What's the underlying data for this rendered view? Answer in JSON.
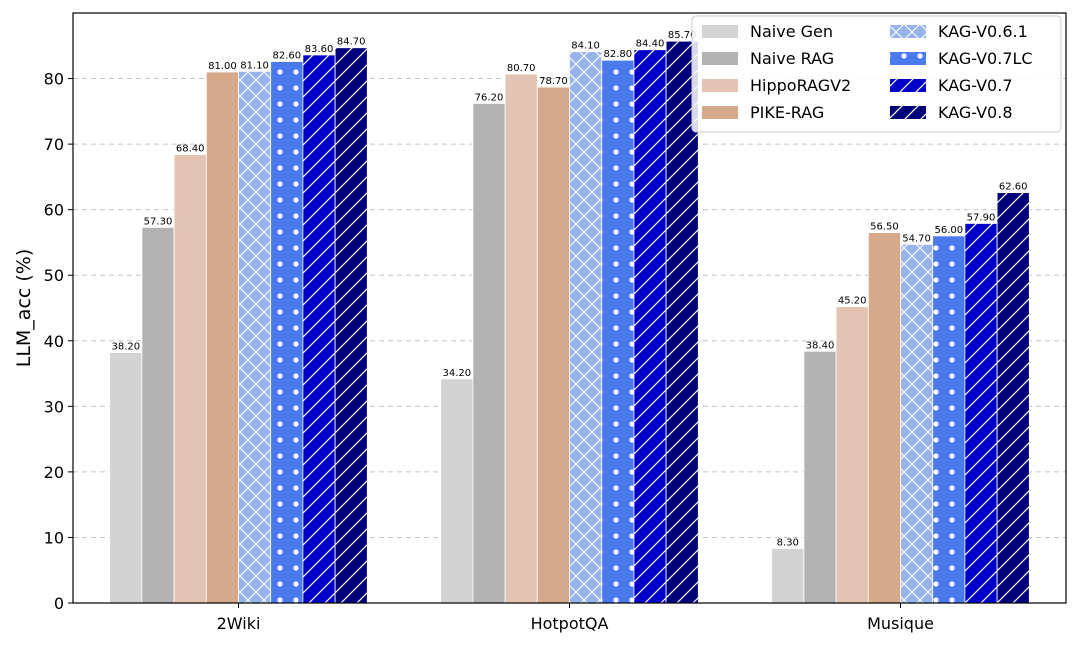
{
  "chart_data": {
    "type": "bar",
    "title": "",
    "xlabel": "",
    "ylabel": "LLM_acc (%)",
    "ylim": [
      0,
      90
    ],
    "yticks": [
      0,
      10,
      20,
      30,
      40,
      50,
      60,
      70,
      80
    ],
    "grid": "y-dashed",
    "legend_position": "top-right",
    "categories": [
      "2Wiki",
      "HotpotQA",
      "Musique"
    ],
    "series": [
      {
        "name": "Naive Gen",
        "values": [
          38.2,
          34.2,
          8.3
        ],
        "color": "#d3d3d3",
        "hatch": "none",
        "labels": [
          "38.20",
          "34.20",
          "8.30"
        ]
      },
      {
        "name": "Naive RAG",
        "values": [
          57.3,
          76.2,
          38.4
        ],
        "color": "#b3b3b3",
        "hatch": "none",
        "labels": [
          "57.30",
          "76.20",
          "38.40"
        ]
      },
      {
        "name": "HippoRAGV2",
        "values": [
          68.4,
          80.7,
          45.2
        ],
        "color": "#e3c4b2",
        "hatch": "none",
        "labels": [
          "68.40",
          "80.70",
          "45.20"
        ]
      },
      {
        "name": "PIKE-RAG",
        "values": [
          81.0,
          78.7,
          56.5
        ],
        "color": "#d6a98a",
        "hatch": "none",
        "labels": [
          "81.00",
          "78.70",
          "56.50"
        ]
      },
      {
        "name": "KAG-V0.6.1",
        "values": [
          81.1,
          84.1,
          54.7
        ],
        "color": "#97b4ea",
        "hatch": "cross",
        "labels": [
          "81.10",
          "84.10",
          "54.70"
        ]
      },
      {
        "name": "KAG-V0.7LC",
        "values": [
          82.6,
          82.8,
          56.0
        ],
        "color": "#4a7aee",
        "hatch": "dots",
        "labels": [
          "82.60",
          "82.80",
          "56.00"
        ]
      },
      {
        "name": "KAG-V0.7",
        "values": [
          83.6,
          84.4,
          57.9
        ],
        "color": "#0000c8",
        "hatch": "slash",
        "labels": [
          "83.60",
          "84.40",
          "57.90"
        ]
      },
      {
        "name": "KAG-V0.8",
        "values": [
          84.7,
          85.7,
          62.6
        ],
        "color": "#00007a",
        "hatch": "slash",
        "labels": [
          "84.70",
          "85.70",
          "62.60"
        ]
      }
    ]
  }
}
